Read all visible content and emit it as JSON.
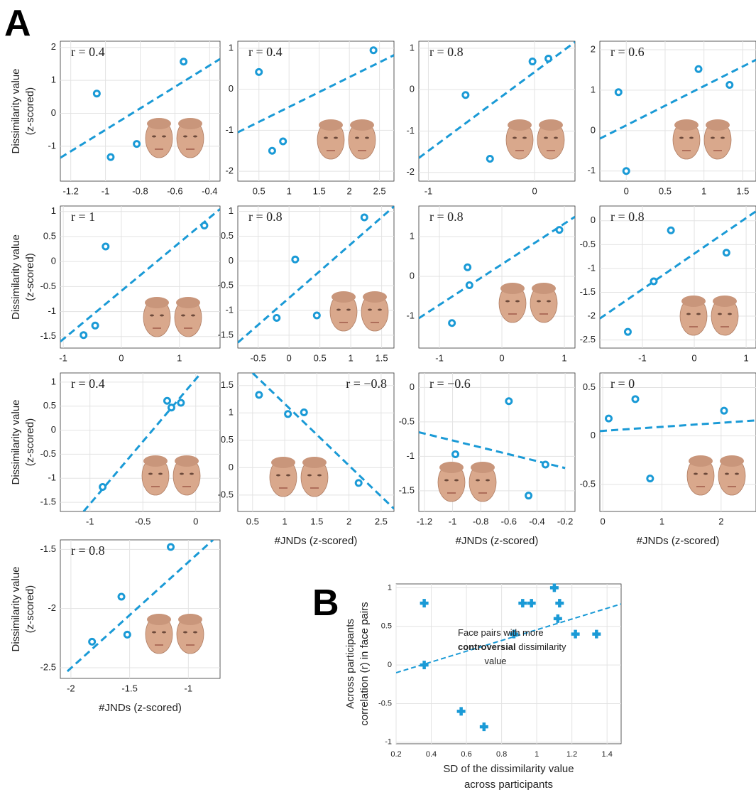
{
  "labels": [
    "A",
    "B"
  ],
  "chart_data": [
    {
      "type": "scatter",
      "annotation": "r = 0.4",
      "color": "#1a9ad6",
      "marker": "circle",
      "y_label": [
        "Dissimilarity value",
        "(z-scored)"
      ],
      "x": [
        -1.05,
        -0.97,
        -0.82,
        -0.55
      ],
      "y": [
        0.6,
        -1.33,
        -0.93,
        1.57
      ],
      "fit": {
        "x": [
          -1.26,
          -0.34
        ],
        "y": [
          -1.35,
          1.65
        ]
      },
      "xlim": [
        -1.26,
        -0.34
      ],
      "ylim": [
        -2.06,
        2.19
      ],
      "xticks": [
        -1.2,
        -1,
        -0.8,
        -0.6,
        -0.4
      ],
      "yticks": [
        -1,
        0,
        1,
        2
      ]
    },
    {
      "type": "scatter",
      "annotation": "r = 0.4",
      "color": "#1a9ad6",
      "marker": "circle",
      "x": [
        0.5,
        0.72,
        0.9,
        2.4
      ],
      "y": [
        0.42,
        -1.5,
        -1.27,
        0.95
      ],
      "fit": {
        "x": [
          0.15,
          2.74
        ],
        "y": [
          -1.05,
          0.83
        ]
      },
      "xlim": [
        0.15,
        2.74
      ],
      "ylim": [
        -2.24,
        1.17
      ],
      "xticks": [
        0.5,
        1,
        1.5,
        2,
        2.5
      ],
      "yticks": [
        -2,
        -1,
        0,
        1
      ]
    },
    {
      "type": "scatter",
      "annotation": "r = 0.8",
      "color": "#1a9ad6",
      "marker": "circle",
      "x": [
        -0.65,
        -0.42,
        -0.02,
        0.13
      ],
      "y": [
        -0.13,
        -1.67,
        0.68,
        0.75
      ],
      "fit": {
        "x": [
          -1.09,
          0.38
        ],
        "y": [
          -1.65,
          1.15
        ]
      },
      "xlim": [
        -1.09,
        0.38
      ],
      "ylim": [
        -2.21,
        1.17
      ],
      "xticks": [
        -1,
        0
      ],
      "yticks": [
        -2,
        -1,
        0,
        1
      ]
    },
    {
      "type": "scatter",
      "annotation": "r = 0.6",
      "color": "#1a9ad6",
      "marker": "circle",
      "x": [
        -0.1,
        0,
        0.93,
        1.33
      ],
      "y": [
        0.95,
        -1,
        1.52,
        1.13
      ],
      "fit": {
        "x": [
          -0.34,
          1.67
        ],
        "y": [
          -0.2,
          1.75
        ]
      },
      "xlim": [
        -0.34,
        1.67
      ],
      "ylim": [
        -1.25,
        2.21
      ],
      "xticks": [
        0,
        0.5,
        1,
        1.5
      ],
      "yticks": [
        -1,
        0,
        1,
        2
      ]
    },
    {
      "type": "scatter",
      "annotation": "r = 1",
      "color": "#1a9ad6",
      "marker": "circle",
      "y_label": [
        "Dissimilarity value",
        "(z-scored)"
      ],
      "x": [
        -0.65,
        -0.45,
        -0.27,
        1.43
      ],
      "y": [
        -1.47,
        -1.28,
        0.3,
        0.72
      ],
      "fit": {
        "x": [
          -1.05,
          1.7
        ],
        "y": [
          -1.6,
          1.05
        ]
      },
      "xlim": [
        -1.05,
        1.7
      ],
      "ylim": [
        -1.73,
        1.11
      ],
      "xticks": [
        -1,
        0,
        1
      ],
      "yticks": [
        -1.5,
        -1,
        -0.5,
        0,
        0.5,
        1
      ]
    },
    {
      "type": "scatter",
      "annotation": "r = 0.8",
      "color": "#1a9ad6",
      "marker": "circle",
      "x": [
        -0.2,
        0.1,
        0.45,
        1.22
      ],
      "y": [
        -1.15,
        0.03,
        -1.1,
        0.88
      ],
      "fit": {
        "x": [
          -0.83,
          1.7
        ],
        "y": [
          -1.65,
          1.1
        ]
      },
      "xlim": [
        -0.83,
        1.7
      ],
      "ylim": [
        -1.76,
        1.11
      ],
      "xticks": [
        -0.5,
        0,
        0.5,
        1,
        1.5
      ],
      "yticks": [
        -1.5,
        -1,
        -0.5,
        0,
        0.5,
        1
      ]
    },
    {
      "type": "scatter",
      "annotation": "r = 0.8",
      "color": "#1a9ad6",
      "marker": "circle",
      "x": [
        -0.8,
        -0.55,
        -0.52,
        0.92
      ],
      "y": [
        -1.17,
        0.23,
        -0.22,
        1.17
      ],
      "fit": {
        "x": [
          -1.33,
          1.17
        ],
        "y": [
          -1.05,
          1.5
        ]
      },
      "xlim": [
        -1.33,
        1.17
      ],
      "ylim": [
        -1.8,
        1.77
      ],
      "xticks": [
        -1,
        0,
        1
      ],
      "yticks": [
        -1,
        0,
        1
      ]
    },
    {
      "type": "scatter",
      "annotation": "r = 0.8",
      "color": "#1a9ad6",
      "marker": "circle",
      "x": [
        -1.28,
        -0.78,
        -0.45,
        0.62
      ],
      "y": [
        -2.33,
        -1.27,
        -0.2,
        -0.67
      ],
      "fit": {
        "x": [
          -1.82,
          1.19
        ],
        "y": [
          -2.05,
          0.2
        ]
      },
      "xlim": [
        -1.82,
        1.19
      ],
      "ylim": [
        -2.67,
        0.31
      ],
      "xticks": [
        -1,
        0,
        1
      ],
      "yticks": [
        -2.5,
        -2,
        -1.5,
        -1,
        -0.5,
        0
      ]
    },
    {
      "type": "scatter",
      "annotation": "r = 0.4",
      "color": "#1a9ad6",
      "marker": "circle",
      "y_label": [
        "Dissimilarity value",
        "(z-scored)"
      ],
      "x": [
        -0.88,
        -0.27,
        -0.23,
        -0.14
      ],
      "y": [
        -1.18,
        0.61,
        0.47,
        0.57
      ],
      "fit": {
        "x": [
          -1.06,
          0.05
        ],
        "y": [
          -1.69,
          1.19
        ]
      },
      "xlim": [
        -1.28,
        0.23
      ],
      "ylim": [
        -1.69,
        1.19
      ],
      "xticks": [
        -1,
        -0.5,
        0
      ],
      "yticks": [
        -1.5,
        -1,
        -0.5,
        0,
        0.5,
        1
      ]
    },
    {
      "type": "scatter",
      "annotation": "r = −0.8",
      "color": "#1a9ad6",
      "marker": "circle",
      "x_label": "#JNDs (z-scored)",
      "x": [
        0.6,
        1.05,
        1.3,
        2.15
      ],
      "y": [
        1.33,
        0.98,
        1.01,
        -0.28
      ],
      "fit": {
        "x": [
          0.5,
          2.7
        ],
        "y": [
          1.73,
          -0.75
        ]
      },
      "xlim": [
        0.27,
        2.7
      ],
      "ylim": [
        -0.8,
        1.73
      ],
      "xticks": [
        0.5,
        1,
        1.5,
        2,
        2.5
      ],
      "yticks": [
        -0.5,
        0,
        0.5,
        1,
        1.5
      ]
    },
    {
      "type": "scatter",
      "annotation": "r = −0.6",
      "color": "#1a9ad6",
      "marker": "circle",
      "x_label": "#JNDs (z-scored)",
      "x": [
        -0.98,
        -0.6,
        -0.46,
        -0.34
      ],
      "y": [
        -0.97,
        -0.2,
        -1.57,
        -1.12
      ],
      "fit": {
        "x": [
          -1.24,
          -0.2
        ],
        "y": [
          -0.65,
          -1.17
        ]
      },
      "xlim": [
        -1.24,
        -0.13
      ],
      "ylim": [
        -1.8,
        0.21
      ],
      "xticks": [
        -1.2,
        -1,
        -0.8,
        -0.6,
        -0.4,
        -0.2
      ],
      "yticks": [
        -1.5,
        -1,
        -0.5,
        0
      ]
    },
    {
      "type": "scatter",
      "annotation": "r = 0",
      "color": "#1a9ad6",
      "marker": "circle",
      "x_label": "#JNDs (z-scored)",
      "x": [
        0.1,
        0.55,
        0.8,
        2.05
      ],
      "y": [
        0.18,
        0.38,
        -0.44,
        0.26
      ],
      "fit": {
        "x": [
          -0.05,
          2.59
        ],
        "y": [
          0.05,
          0.16
        ]
      },
      "xlim": [
        -0.05,
        2.59
      ],
      "ylim": [
        -0.78,
        0.65
      ],
      "xticks": [
        0,
        1,
        2
      ],
      "yticks": [
        -0.5,
        0,
        0.5
      ]
    },
    {
      "type": "scatter",
      "annotation": "r = 0.8",
      "color": "#1a9ad6",
      "marker": "circle",
      "x_label": "#JNDs (z-scored)",
      "y_label": [
        "Dissimilarity value",
        "(z-scored)"
      ],
      "x": [
        -1.82,
        -1.57,
        -1.52,
        -1.15
      ],
      "y": [
        -2.28,
        -1.9,
        -2.22,
        -1.48
      ],
      "fit": {
        "x": [
          -2.03,
          -0.79
        ],
        "y": [
          -2.53,
          -1.42
        ]
      },
      "xlim": [
        -2.09,
        -0.73
      ],
      "ylim": [
        -2.59,
        -1.42
      ],
      "xticks": [
        -2,
        -1.5,
        -1
      ],
      "yticks": [
        -2.5,
        -2,
        -1.5
      ]
    },
    {
      "type": "scatter",
      "color": "#1a9ad6",
      "marker": "plus",
      "x_label": [
        "SD of the dissimilarity value",
        "across participants"
      ],
      "y_label": [
        "Across participants",
        "correlation (r) in face pairs"
      ],
      "annotation_lines": [
        "Face pairs with more",
        "controversial",
        " dissimilarity",
        "value"
      ],
      "x": [
        0.36,
        0.36,
        0.57,
        0.7,
        0.87,
        0.92,
        0.97,
        1.1,
        1.12,
        1.13,
        1.22,
        1.34
      ],
      "y": [
        0.8,
        0,
        -0.6,
        -0.8,
        0.4,
        0.8,
        0.8,
        1,
        0.6,
        0.8,
        0.4,
        0.4
      ],
      "fit": {
        "x": [
          0.2,
          1.48
        ],
        "y": [
          -0.1,
          0.79
        ]
      },
      "xlim": [
        0.2,
        1.48
      ],
      "ylim": [
        -1.02,
        1.05
      ],
      "xticks": [
        0.2,
        0.4,
        0.6,
        0.8,
        1,
        1.2,
        1.4
      ],
      "yticks": [
        -1,
        -0.5,
        0,
        0.5,
        1
      ]
    }
  ]
}
